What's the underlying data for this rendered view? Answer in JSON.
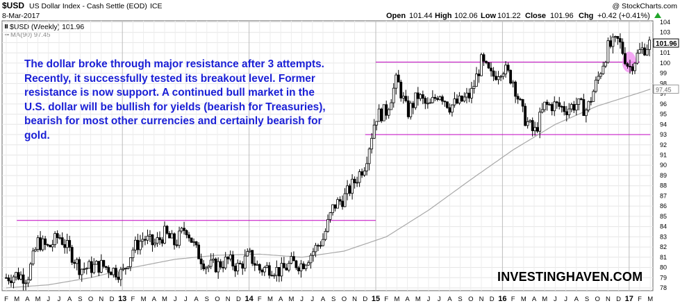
{
  "header": {
    "symbol": "$USD",
    "name": "US Dollar Index - Cash Settle (EOD)",
    "exchange": "ICE",
    "date": "8-Mar-2017",
    "copyright": "@ StockCharts.com",
    "open_label": "Open",
    "open": "101.44",
    "high_label": "High",
    "high": "102.06",
    "low_label": "Low",
    "low": "101.22",
    "close_label": "Close",
    "close": "101.96",
    "chg_label": "Chg",
    "chg": "+0.42 (+0.41%)",
    "chg_arrow_icon": "up-arrow-icon"
  },
  "legend": {
    "price_label": "$USD (Weekly) 101.96",
    "ma_label": "MA(90) 97.45"
  },
  "annotation": "The dollar broke through major resistance after 3 attempts. Recently, it successfully tested its breakout level. Former resistance is now support. A continued bull market in the U.S. dollar will be bullish for yields (bearish for Treasuries), bearish for most other currencies and certainly bearish for gold.",
  "watermark": "INVESTINGHAVEN.COM",
  "colors": {
    "candle": "#000000",
    "ma_line": "#a8a8a8",
    "resistance_line": "#c000c0",
    "highlight_circle": "#f28bf2",
    "annotation_text": "#1a1fd6"
  },
  "chart_data": {
    "type": "candlestick",
    "timeframe": "weekly",
    "y_axis": {
      "min": 78,
      "max": 104,
      "side": "right",
      "ticks": [
        "78",
        "79",
        "80",
        "81",
        "82",
        "83",
        "84",
        "85",
        "86",
        "87",
        "88",
        "89",
        "90",
        "91",
        "92",
        "93",
        "94",
        "95",
        "96",
        "97",
        "98",
        "99",
        "100",
        "101",
        "102",
        "103",
        "104"
      ]
    },
    "price_tag": "101.96",
    "ma_tag": "97.45",
    "x_axis": {
      "labels": [
        "F",
        "M",
        "A",
        "M",
        "J",
        "J",
        "A",
        "S",
        "O",
        "N",
        "D",
        "13",
        "F",
        "M",
        "A",
        "M",
        "J",
        "J",
        "A",
        "S",
        "O",
        "N",
        "D",
        "14",
        "F",
        "M",
        "A",
        "M",
        "J",
        "J",
        "A",
        "S",
        "O",
        "N",
        "D",
        "15",
        "F",
        "M",
        "A",
        "M",
        "J",
        "J",
        "A",
        "S",
        "O",
        "N",
        "D",
        "16",
        "F",
        "M",
        "A",
        "M",
        "J",
        "J",
        "A",
        "S",
        "O",
        "N",
        "D",
        "17",
        "F",
        "M"
      ],
      "years": [
        "13",
        "14",
        "15",
        "16",
        "17"
      ]
    },
    "close_path_monthly": [
      {
        "m": "2012-02",
        "v": 79.0
      },
      {
        "m": "2012-03",
        "v": 79.3
      },
      {
        "m": "2012-04",
        "v": 79.0
      },
      {
        "m": "2012-05",
        "v": 82.5
      },
      {
        "m": "2012-06",
        "v": 81.9
      },
      {
        "m": "2012-07",
        "v": 83.1
      },
      {
        "m": "2012-08",
        "v": 81.6
      },
      {
        "m": "2012-09",
        "v": 79.9
      },
      {
        "m": "2012-10",
        "v": 80.0
      },
      {
        "m": "2012-11",
        "v": 80.2
      },
      {
        "m": "2012-12",
        "v": 79.8
      },
      {
        "m": "2013-01",
        "v": 79.4
      },
      {
        "m": "2013-02",
        "v": 81.8
      },
      {
        "m": "2013-03",
        "v": 82.9
      },
      {
        "m": "2013-04",
        "v": 82.2
      },
      {
        "m": "2013-05",
        "v": 83.3
      },
      {
        "m": "2013-06",
        "v": 82.3
      },
      {
        "m": "2013-07",
        "v": 84.0
      },
      {
        "m": "2013-08",
        "v": 81.6
      },
      {
        "m": "2013-09",
        "v": 80.1
      },
      {
        "m": "2013-10",
        "v": 80.2
      },
      {
        "m": "2013-11",
        "v": 80.7
      },
      {
        "m": "2013-12",
        "v": 80.0
      },
      {
        "m": "2014-01",
        "v": 81.2
      },
      {
        "m": "2014-02",
        "v": 79.8
      },
      {
        "m": "2014-03",
        "v": 80.0
      },
      {
        "m": "2014-04",
        "v": 79.6
      },
      {
        "m": "2014-05",
        "v": 80.4
      },
      {
        "m": "2014-06",
        "v": 80.3
      },
      {
        "m": "2014-07",
        "v": 81.5
      },
      {
        "m": "2014-08",
        "v": 82.8
      },
      {
        "m": "2014-09",
        "v": 86.0
      },
      {
        "m": "2014-10",
        "v": 86.8
      },
      {
        "m": "2014-11",
        "v": 88.4
      },
      {
        "m": "2014-12",
        "v": 90.2
      },
      {
        "m": "2015-01",
        "v": 94.8
      },
      {
        "m": "2015-02",
        "v": 95.3
      },
      {
        "m": "2015-03",
        "v": 98.4
      },
      {
        "m": "2015-04",
        "v": 95.1
      },
      {
        "m": "2015-05",
        "v": 96.8
      },
      {
        "m": "2015-06",
        "v": 95.6
      },
      {
        "m": "2015-07",
        "v": 97.2
      },
      {
        "m": "2015-08",
        "v": 95.8
      },
      {
        "m": "2015-09",
        "v": 96.2
      },
      {
        "m": "2015-10",
        "v": 96.9
      },
      {
        "m": "2015-11",
        "v": 100.1
      },
      {
        "m": "2015-12",
        "v": 98.6
      },
      {
        "m": "2016-01",
        "v": 99.6
      },
      {
        "m": "2016-02",
        "v": 98.3
      },
      {
        "m": "2016-03",
        "v": 94.8
      },
      {
        "m": "2016-04",
        "v": 93.1
      },
      {
        "m": "2016-05",
        "v": 95.8
      },
      {
        "m": "2016-06",
        "v": 95.9
      },
      {
        "m": "2016-07",
        "v": 95.5
      },
      {
        "m": "2016-08",
        "v": 96.0
      },
      {
        "m": "2016-09",
        "v": 95.4
      },
      {
        "m": "2016-10",
        "v": 98.4
      },
      {
        "m": "2016-11",
        "v": 101.5
      },
      {
        "m": "2016-12",
        "v": 102.2
      },
      {
        "m": "2017-01",
        "v": 99.5
      },
      {
        "m": "2017-02",
        "v": 101.1
      },
      {
        "m": "2017-03",
        "v": 101.96
      }
    ],
    "ma90_path_monthly": [
      {
        "m": "2012-02",
        "v": 78.0
      },
      {
        "m": "2012-06",
        "v": 78.3
      },
      {
        "m": "2012-10",
        "v": 79.0
      },
      {
        "m": "2013-02",
        "v": 80.0
      },
      {
        "m": "2013-06",
        "v": 80.8
      },
      {
        "m": "2013-10",
        "v": 81.2
      },
      {
        "m": "2014-02",
        "v": 81.3
      },
      {
        "m": "2014-06",
        "v": 81.0
      },
      {
        "m": "2014-10",
        "v": 81.6
      },
      {
        "m": "2015-02",
        "v": 83.0
      },
      {
        "m": "2015-06",
        "v": 85.6
      },
      {
        "m": "2015-10",
        "v": 88.6
      },
      {
        "m": "2016-02",
        "v": 91.5
      },
      {
        "m": "2016-06",
        "v": 94.0
      },
      {
        "m": "2016-10",
        "v": 95.8
      },
      {
        "m": "2017-02",
        "v": 97.1
      },
      {
        "m": "2017-03",
        "v": 97.45
      }
    ],
    "resistance_lines": [
      {
        "value": 84.6,
        "from": "2012-03",
        "to": "2015-01"
      },
      {
        "value": 93.0,
        "from": "2014-12",
        "to": "2017-03"
      },
      {
        "value": 100.1,
        "from": "2015-01",
        "to": "2017-02"
      }
    ],
    "highlight": {
      "center": "2017-01",
      "value": 100.1,
      "note": "breakout retest"
    }
  }
}
